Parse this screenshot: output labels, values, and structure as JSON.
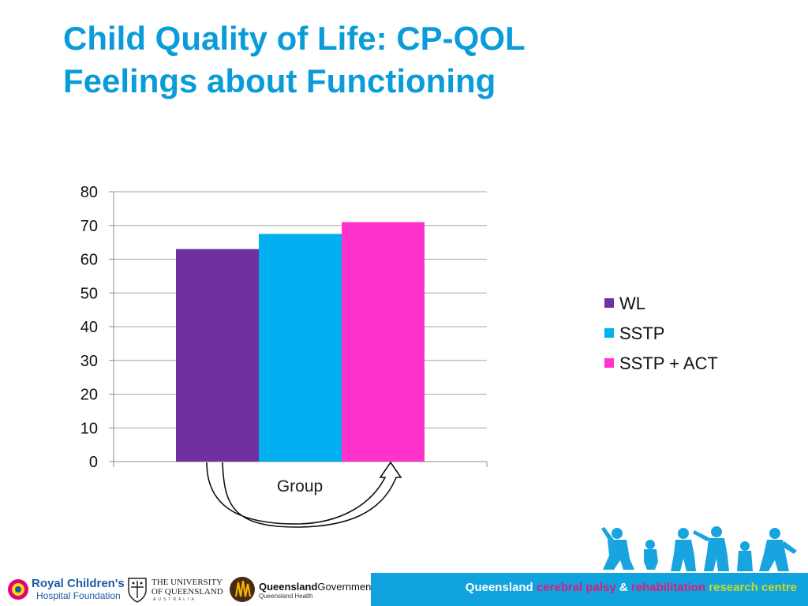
{
  "slide": {
    "title_line1": "Child Quality of Life: CP-QOL",
    "title_line2": "Feelings about Functioning"
  },
  "chart_data": {
    "type": "bar",
    "categories": [
      "Group"
    ],
    "series": [
      {
        "name": "WL",
        "values": [
          63
        ],
        "color": "#7030a0"
      },
      {
        "name": "SSTP",
        "values": [
          67.5
        ],
        "color": "#00b0f0"
      },
      {
        "name": "SSTP + ACT",
        "values": [
          71
        ],
        "color": "#ff33cc"
      }
    ],
    "xlabel": "Group",
    "ylabel": "",
    "ylim": [
      0,
      80
    ],
    "yticks": [
      0,
      10,
      20,
      30,
      40,
      50,
      60,
      70,
      80
    ],
    "grid": true,
    "legend": "right",
    "annotation": "curved-arrow-wl-to-sstp-act"
  },
  "footer": {
    "rch_line1": "Royal Children's",
    "rch_line2": "Hospital Foundation",
    "uq_line1": "THE UNIVERSITY",
    "uq_line2": "OF QUEENSLAND",
    "uq_line3": "AUSTRALIA",
    "qg_line1_bold": "Queensland",
    "qg_line1_rest": "Government",
    "qg_line2": "Queensland Health",
    "centre_part1": "Queensland ",
    "centre_part2": "cerebral palsy",
    "centre_part3": " & ",
    "centre_part4": "rehabilitation",
    "centre_part5": " research centre",
    "bar_color": "#10a3de"
  }
}
